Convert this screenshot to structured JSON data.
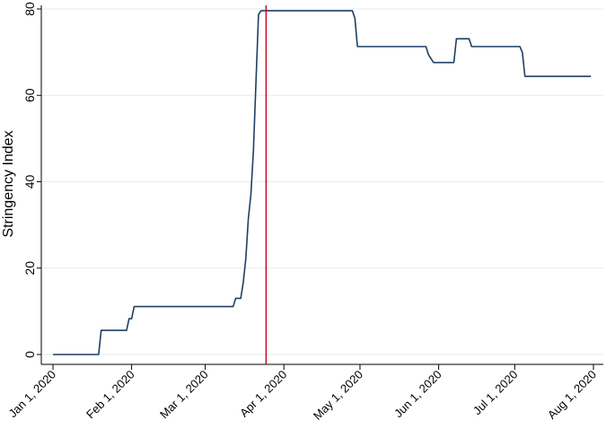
{
  "chart_data": {
    "type": "line",
    "title": "",
    "xlabel": "",
    "ylabel": "Stringency Index",
    "xlim": [
      "2020-01-01",
      "2020-08-01"
    ],
    "ylim": [
      0,
      80
    ],
    "x_ticks": [
      "Jan 1, 2020",
      "Feb 1, 2020",
      "Mar 1, 2020",
      "Apr 1, 2020",
      "May 1, 2020",
      "Jun 1, 2020",
      "Jul 1, 2020",
      "Aug 1, 2020"
    ],
    "y_ticks": [
      "0",
      "20",
      "40",
      "60",
      "80"
    ],
    "grid": "horizontal",
    "legend": "none",
    "colors": {
      "line": "#1f3f63",
      "vline": "#c8102e",
      "grid": "#e6ebef",
      "axis": "#000000"
    },
    "reference_line": {
      "x": "2020-03-25"
    },
    "series": [
      {
        "x": [
          "2020-01-01",
          "2020-01-19",
          "2020-01-20",
          "2020-01-30",
          "2020-01-31",
          "2020-02-01",
          "2020-02-02",
          "2020-03-12",
          "2020-03-13",
          "2020-03-15",
          "2020-03-16",
          "2020-03-17",
          "2020-03-18",
          "2020-03-19",
          "2020-03-20",
          "2020-03-21",
          "2020-03-22",
          "2020-03-23",
          "2020-03-24",
          "2020-03-25",
          "2020-04-28",
          "2020-04-29",
          "2020-04-30",
          "2020-05-01",
          "2020-05-27",
          "2020-05-28",
          "2020-05-30",
          "2020-06-01",
          "2020-06-07",
          "2020-06-08",
          "2020-06-13",
          "2020-06-14",
          "2020-07-03",
          "2020-07-04",
          "2020-07-05",
          "2020-07-31"
        ],
        "y": [
          0,
          0,
          5.6,
          5.6,
          8.3,
          8.3,
          11.1,
          11.1,
          13,
          13,
          16.7,
          22.2,
          31.5,
          37,
          47.2,
          63,
          78.7,
          79.6,
          79.6,
          79.6,
          79.6,
          77.8,
          71.3,
          71.3,
          71.3,
          69.4,
          67.6,
          67.6,
          67.6,
          73.1,
          73.1,
          71.3,
          71.3,
          69.9,
          64.4,
          64.4
        ]
      }
    ]
  }
}
